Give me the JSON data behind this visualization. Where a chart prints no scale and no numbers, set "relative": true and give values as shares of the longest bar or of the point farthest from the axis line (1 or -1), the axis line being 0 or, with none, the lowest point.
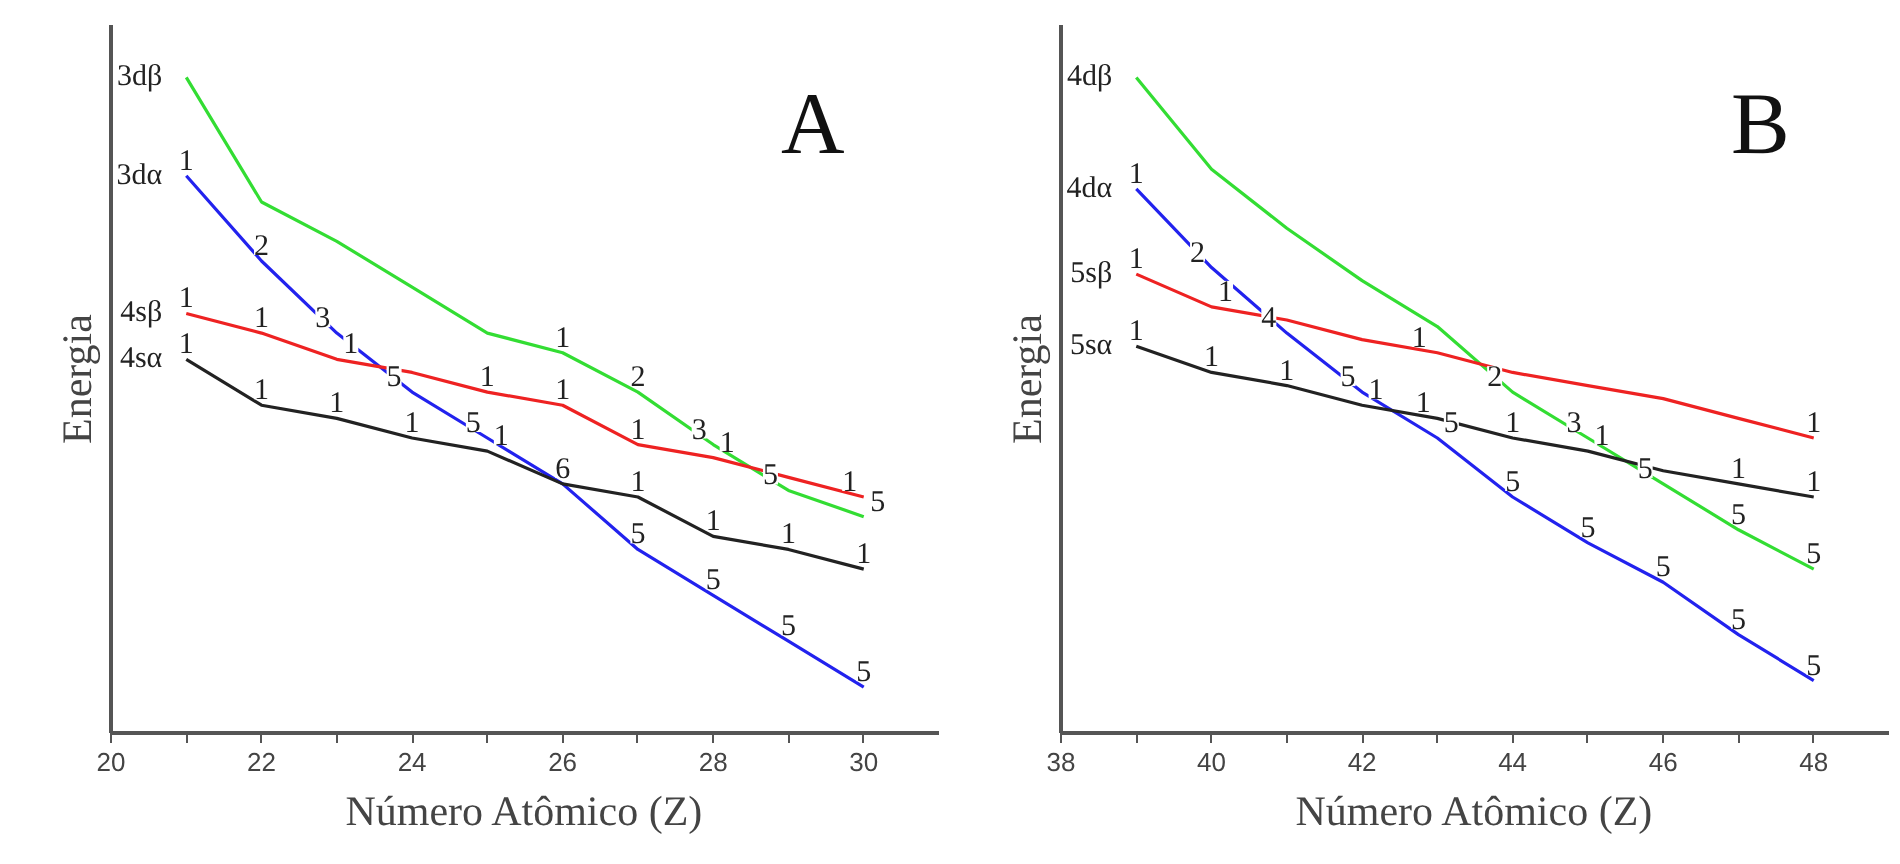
{
  "chart_data": [
    {
      "type": "line",
      "title": "A",
      "xlabel": "Número Atômico (Z)",
      "ylabel": "Energia",
      "relative": true,
      "tick_labels": "x",
      "grid": false,
      "x": [
        21,
        22,
        23,
        24,
        25,
        26,
        27,
        28,
        29,
        30
      ],
      "xlim": [
        20,
        31
      ],
      "xticks": [
        20,
        {
          "value": 21,
          "label": null
        },
        22,
        {
          "value": 23,
          "label": null
        },
        24,
        {
          "value": 25,
          "label": null
        },
        26,
        {
          "value": 27,
          "label": null
        },
        28,
        {
          "value": 29,
          "label": null
        },
        30
      ],
      "series": [
        {
          "name": "3dβ",
          "color": "#33dd33",
          "values": [
            1.0,
            0.81,
            0.75,
            0.68,
            0.61,
            0.58,
            0.52,
            0.44,
            0.37,
            0.33
          ]
        },
        {
          "name": "3dα",
          "color": "#2222ee",
          "values": [
            0.85,
            0.72,
            0.61,
            0.52,
            0.45,
            0.38,
            0.28,
            0.21,
            0.14,
            0.07
          ]
        },
        {
          "name": "4sβ",
          "color": "#ee2222",
          "values": [
            0.64,
            0.61,
            0.57,
            0.55,
            0.52,
            0.5,
            0.44,
            0.42,
            0.39,
            0.36
          ]
        },
        {
          "name": "4sα",
          "color": "#222222",
          "values": [
            0.57,
            0.5,
            0.48,
            0.45,
            0.43,
            0.38,
            0.36,
            0.3,
            0.28,
            0.25
          ]
        }
      ],
      "annotations": [
        {
          "text": "1",
          "x": 26,
          "y": 0.58
        },
        {
          "text": "2",
          "x": 27,
          "y": 0.52
        },
        {
          "text": "3",
          "x": 28,
          "y": 0.44
        },
        {
          "text": "5",
          "x": 29,
          "y": 0.37
        },
        {
          "text": "5",
          "x": 30,
          "y": 0.33
        },
        {
          "text": "1",
          "x": 21,
          "y": 0.85
        },
        {
          "text": "2",
          "x": 22,
          "y": 0.72
        },
        {
          "text": "3",
          "x": 23,
          "y": 0.61
        },
        {
          "text": "5",
          "x": 24,
          "y": 0.52
        },
        {
          "text": "5",
          "x": 25,
          "y": 0.45
        },
        {
          "text": "6",
          "x": 26,
          "y": 0.38
        },
        {
          "text": "5",
          "x": 27,
          "y": 0.28
        },
        {
          "text": "5",
          "x": 28,
          "y": 0.21
        },
        {
          "text": "5",
          "x": 29,
          "y": 0.14
        },
        {
          "text": "5",
          "x": 30,
          "y": 0.07
        },
        {
          "text": "1",
          "x": 21,
          "y": 0.64
        },
        {
          "text": "1",
          "x": 22,
          "y": 0.61
        },
        {
          "text": "1",
          "x": 23,
          "y": 0.57
        },
        {
          "text": "1",
          "x": 25,
          "y": 0.52
        },
        {
          "text": "1",
          "x": 26,
          "y": 0.5
        },
        {
          "text": "1",
          "x": 27,
          "y": 0.44
        },
        {
          "text": "1",
          "x": 28,
          "y": 0.42
        },
        {
          "text": "1",
          "x": 30,
          "y": 0.36
        },
        {
          "text": "1",
          "x": 21,
          "y": 0.57
        },
        {
          "text": "1",
          "x": 22,
          "y": 0.5
        },
        {
          "text": "1",
          "x": 23,
          "y": 0.48
        },
        {
          "text": "1",
          "x": 24,
          "y": 0.45
        },
        {
          "text": "1",
          "x": 25,
          "y": 0.43
        },
        {
          "text": "1",
          "x": 27,
          "y": 0.36
        },
        {
          "text": "1",
          "x": 28,
          "y": 0.3
        },
        {
          "text": "1",
          "x": 29,
          "y": 0.28
        },
        {
          "text": "1",
          "x": 30,
          "y": 0.25
        }
      ]
    },
    {
      "type": "line",
      "title": "B",
      "xlabel": "Número Atômico (Z)",
      "ylabel": "Energia",
      "relative": true,
      "tick_labels": "x",
      "grid": false,
      "x": [
        39,
        40,
        41,
        42,
        43,
        44,
        45,
        46,
        47,
        48
      ],
      "xlim": [
        38,
        49
      ],
      "xticks": [
        38,
        {
          "value": 39,
          "label": null
        },
        40,
        {
          "value": 41,
          "label": null
        },
        42,
        {
          "value": 43,
          "label": null
        },
        44,
        {
          "value": 45,
          "label": null
        },
        46,
        {
          "value": 47,
          "label": null
        },
        48
      ],
      "series": [
        {
          "name": "4dβ",
          "color": "#33dd33",
          "values": [
            1.0,
            0.86,
            0.77,
            0.69,
            0.62,
            0.52,
            0.45,
            0.38,
            0.31,
            0.25
          ]
        },
        {
          "name": "4dα",
          "color": "#2222ee",
          "values": [
            0.83,
            0.71,
            0.61,
            0.52,
            0.45,
            0.36,
            0.29,
            0.23,
            0.15,
            0.08
          ]
        },
        {
          "name": "5sβ",
          "color": "#ee2222",
          "values": [
            0.7,
            0.65,
            0.63,
            0.6,
            0.58,
            0.55,
            0.53,
            0.51,
            0.48,
            0.45
          ]
        },
        {
          "name": "5sα",
          "color": "#222222",
          "values": [
            0.59,
            0.55,
            0.53,
            0.5,
            0.48,
            0.45,
            0.43,
            0.4,
            0.38,
            0.36
          ]
        }
      ],
      "annotations": [
        {
          "text": "2",
          "x": 44,
          "y": 0.52
        },
        {
          "text": "3",
          "x": 45,
          "y": 0.45
        },
        {
          "text": "5",
          "x": 46,
          "y": 0.38
        },
        {
          "text": "5",
          "x": 47,
          "y": 0.31
        },
        {
          "text": "5",
          "x": 48,
          "y": 0.25
        },
        {
          "text": "1",
          "x": 39,
          "y": 0.83
        },
        {
          "text": "2",
          "x": 40,
          "y": 0.71
        },
        {
          "text": "4",
          "x": 41,
          "y": 0.61
        },
        {
          "text": "5",
          "x": 42,
          "y": 0.52
        },
        {
          "text": "5",
          "x": 43,
          "y": 0.45
        },
        {
          "text": "5",
          "x": 44,
          "y": 0.36
        },
        {
          "text": "5",
          "x": 45,
          "y": 0.29
        },
        {
          "text": "5",
          "x": 46,
          "y": 0.23
        },
        {
          "text": "5",
          "x": 47,
          "y": 0.15
        },
        {
          "text": "5",
          "x": 48,
          "y": 0.08
        },
        {
          "text": "1",
          "x": 39,
          "y": 0.7
        },
        {
          "text": "1",
          "x": 40,
          "y": 0.65
        },
        {
          "text": "1",
          "x": 43,
          "y": 0.58
        },
        {
          "text": "1",
          "x": 48,
          "y": 0.45
        },
        {
          "text": "1",
          "x": 39,
          "y": 0.59
        },
        {
          "text": "1",
          "x": 40,
          "y": 0.55
        },
        {
          "text": "1",
          "x": 41,
          "y": 0.53
        },
        {
          "text": "1",
          "x": 42,
          "y": 0.5
        },
        {
          "text": "1",
          "x": 43,
          "y": 0.48
        },
        {
          "text": "1",
          "x": 44,
          "y": 0.45
        },
        {
          "text": "1",
          "x": 45,
          "y": 0.43
        },
        {
          "text": "1",
          "x": 47,
          "y": 0.38
        },
        {
          "text": "1",
          "x": 48,
          "y": 0.36
        }
      ]
    }
  ]
}
